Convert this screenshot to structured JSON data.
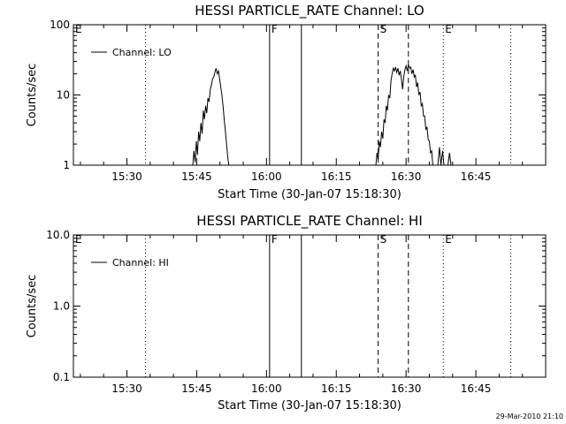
{
  "chart_data": [
    {
      "type": "line",
      "title": "HESSI PARTICLE_RATE Channel: LO",
      "xlabel": "Start Time (30-Jan-07 15:18:30)",
      "ylabel": "Counts/sec",
      "yscale": "log",
      "ylim": [
        1,
        100
      ],
      "xlim": [
        "15:18:30",
        "17:00:00"
      ],
      "x_ticks": [
        "15:30",
        "15:45",
        "16:00",
        "16:15",
        "16:30",
        "16:45"
      ],
      "y_ticks": [
        "1",
        "10",
        "100"
      ],
      "legend": {
        "position": "top-left",
        "entries": [
          "Channel: LO"
        ]
      },
      "markers": [
        {
          "label": "E",
          "time": "15:18:30",
          "style": "dotted"
        },
        {
          "label": "",
          "time": "15:34:00",
          "style": "dotted"
        },
        {
          "label": "F",
          "time": "16:00:40",
          "style": "solid"
        },
        {
          "label": "",
          "time": "16:07:30",
          "style": "solid"
        },
        {
          "label": "S",
          "time": "16:24:00",
          "style": "dashed"
        },
        {
          "label": "",
          "time": "16:30:30",
          "style": "dashed"
        },
        {
          "label": "E",
          "time": "16:38:00",
          "style": "dotted"
        },
        {
          "label": "",
          "time": "16:52:30",
          "style": "dotted"
        }
      ],
      "series": [
        {
          "name": "Channel: LO",
          "segments": [
            [
              [
                "15:44:10",
                1.0
              ],
              [
                "15:44:25",
                1.6
              ],
              [
                "15:44:40",
                1.1
              ],
              [
                "15:44:55",
                2.2
              ],
              [
                "15:45:10",
                1.4
              ],
              [
                "15:45:25",
                3.0
              ],
              [
                "15:45:40",
                2.2
              ],
              [
                "15:45:55",
                4.0
              ],
              [
                "15:46:10",
                2.8
              ],
              [
                "15:46:25",
                6.0
              ],
              [
                "15:46:40",
                4.5
              ],
              [
                "15:46:55",
                7.0
              ],
              [
                "15:47:10",
                5.5
              ],
              [
                "15:47:25",
                9.0
              ],
              [
                "15:47:40",
                8.0
              ],
              [
                "15:47:55",
                12.0
              ],
              [
                "15:48:10",
                14.0
              ],
              [
                "15:48:25",
                17.0
              ],
              [
                "15:48:40",
                18.0
              ],
              [
                "15:48:55",
                21.0
              ],
              [
                "15:49:10",
                24.0
              ],
              [
                "15:49:25",
                20.0
              ],
              [
                "15:49:40",
                22.0
              ],
              [
                "15:49:55",
                17.0
              ],
              [
                "15:50:10",
                13.0
              ],
              [
                "15:50:25",
                10.0
              ],
              [
                "15:50:40",
                7.0
              ],
              [
                "15:50:55",
                4.5
              ],
              [
                "15:51:10",
                3.0
              ],
              [
                "15:51:25",
                2.0
              ],
              [
                "15:51:40",
                1.3
              ],
              [
                "15:51:55",
                1.0
              ]
            ],
            [
              [
                "16:23:30",
                1.0
              ],
              [
                "16:23:45",
                1.5
              ],
              [
                "16:24:00",
                1.2
              ],
              [
                "16:24:15",
                2.2
              ],
              [
                "16:24:30",
                1.8
              ],
              [
                "16:24:45",
                3.0
              ],
              [
                "16:25:00",
                2.4
              ],
              [
                "16:25:15",
                4.5
              ],
              [
                "16:25:30",
                4.0
              ],
              [
                "16:25:45",
                7.0
              ],
              [
                "16:26:00",
                6.0
              ],
              [
                "16:26:15",
                10.0
              ],
              [
                "16:26:30",
                9.0
              ],
              [
                "16:26:45",
                16.0
              ],
              [
                "16:27:00",
                20.0
              ],
              [
                "16:27:15",
                24.0
              ],
              [
                "16:27:30",
                22.0
              ],
              [
                "16:27:45",
                25.0
              ],
              [
                "16:28:00",
                21.0
              ],
              [
                "16:28:15",
                24.0
              ],
              [
                "16:28:30",
                19.0
              ],
              [
                "16:28:45",
                22.0
              ],
              [
                "16:29:00",
                17.0
              ],
              [
                "16:29:15",
                12.0
              ],
              [
                "16:29:30",
                18.0
              ],
              [
                "16:29:45",
                23.0
              ],
              [
                "16:30:00",
                26.0
              ],
              [
                "16:30:15",
                22.0
              ],
              [
                "16:30:30",
                27.0
              ],
              [
                "16:30:45",
                24.0
              ],
              [
                "16:31:00",
                25.0
              ],
              [
                "16:31:15",
                20.0
              ],
              [
                "16:31:30",
                23.0
              ],
              [
                "16:31:45",
                18.0
              ],
              [
                "16:32:00",
                19.0
              ],
              [
                "16:32:15",
                13.0
              ],
              [
                "16:32:30",
                15.0
              ],
              [
                "16:32:45",
                10.0
              ],
              [
                "16:33:00",
                11.0
              ],
              [
                "16:33:15",
                7.0
              ],
              [
                "16:33:30",
                7.5
              ],
              [
                "16:33:45",
                5.0
              ],
              [
                "16:34:00",
                5.0
              ],
              [
                "16:34:15",
                3.2
              ],
              [
                "16:34:30",
                3.5
              ],
              [
                "16:34:45",
                2.3
              ],
              [
                "16:35:00",
                2.2
              ],
              [
                "16:35:15",
                1.5
              ],
              [
                "16:35:30",
                1.6
              ],
              [
                "16:35:45",
                1.0
              ]
            ],
            [
              [
                "16:36:50",
                1.0
              ],
              [
                "16:37:10",
                1.8
              ],
              [
                "16:37:30",
                1.0
              ],
              [
                "16:37:50",
                1.6
              ],
              [
                "16:38:10",
                1.0
              ]
            ],
            [
              [
                "16:39:00",
                1.0
              ],
              [
                "16:39:20",
                1.5
              ],
              [
                "16:39:40",
                1.0
              ]
            ]
          ]
        }
      ]
    },
    {
      "type": "line",
      "title": "HESSI PARTICLE_RATE Channel: HI",
      "xlabel": "Start Time (30-Jan-07 15:18:30)",
      "ylabel": "Counts/sec",
      "yscale": "log",
      "ylim": [
        0.1,
        10
      ],
      "xlim": [
        "15:18:30",
        "17:00:00"
      ],
      "x_ticks": [
        "15:30",
        "15:45",
        "16:00",
        "16:15",
        "16:30",
        "16:45"
      ],
      "y_ticks": [
        "0.1",
        "1.0",
        "10.0"
      ],
      "legend": {
        "position": "top-left",
        "entries": [
          "Channel: HI"
        ]
      },
      "markers": [
        {
          "label": "E",
          "time": "15:18:30",
          "style": "dotted"
        },
        {
          "label": "",
          "time": "15:34:00",
          "style": "dotted"
        },
        {
          "label": "F",
          "time": "16:00:40",
          "style": "solid"
        },
        {
          "label": "",
          "time": "16:07:30",
          "style": "solid"
        },
        {
          "label": "S",
          "time": "16:24:00",
          "style": "dashed"
        },
        {
          "label": "",
          "time": "16:30:30",
          "style": "dashed"
        },
        {
          "label": "E",
          "time": "16:38:00",
          "style": "dotted"
        },
        {
          "label": "",
          "time": "16:52:30",
          "style": "dotted"
        }
      ],
      "series": [
        {
          "name": "Channel: HI",
          "segments": []
        }
      ]
    }
  ],
  "footer": {
    "stamp": "29-Mar-2010 21:10"
  }
}
